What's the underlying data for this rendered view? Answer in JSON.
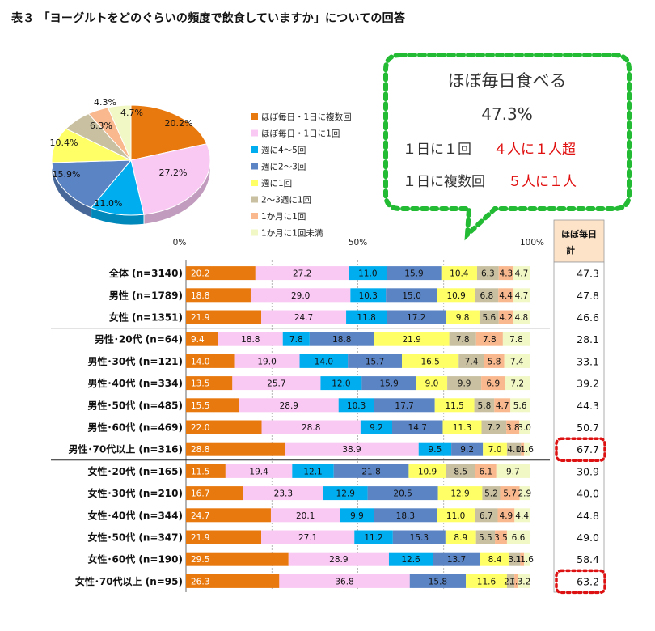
{
  "title": "表３ 「ヨーグルトをどのぐらいの頻度で飲食していますか」についての回答",
  "callout": {
    "heading": "ほぼ毎日食べる",
    "percent": "47.3%",
    "line1_a": "１日に１回",
    "line1_b": "４人に１人超",
    "line2_a": "１日に複数回",
    "line2_b": "５人に１人"
  },
  "colors": [
    "#e8790f",
    "#f9c8f3",
    "#00aeef",
    "#5b84c4",
    "#ffff66",
    "#c8c0a0",
    "#f9b88e",
    "#f2f7c6"
  ],
  "callout_color": "#22bb33",
  "highlight_color": "#dd1111",
  "chart_data": {
    "type": "bar",
    "pie": {
      "type": "pie",
      "labels": [
        "ほぼ毎日・1日に複数回",
        "ほぼ毎日・1日に1回",
        "週に4〜5回",
        "週に2〜3回",
        "週に1回",
        "2〜3週に1回",
        "1か月に1回",
        "1か月に1回未満"
      ],
      "values": [
        20.2,
        27.2,
        11.0,
        15.9,
        10.4,
        6.3,
        4.3,
        4.7
      ],
      "value_labels": [
        "20.2%",
        "27.2%",
        "11.0%",
        "15.9%",
        "10.4%",
        "6.3%",
        "4.3%",
        "4.7%"
      ]
    },
    "stacked_bar": {
      "orientation": "horizontal",
      "stacked": true,
      "axis_ticks": [
        "0%",
        "50%",
        "100%"
      ],
      "xlim": [
        0,
        100
      ],
      "total_header": "ほぼ毎日計",
      "categories": [
        {
          "label": "全体 (n=3140)",
          "values": [
            20.2,
            27.2,
            11.0,
            15.9,
            10.4,
            6.3,
            4.3,
            4.7
          ],
          "texts": [
            "20.2",
            "27.2",
            "11.0",
            "15.9",
            "10.4",
            "6.3",
            "4.3",
            "4.7"
          ],
          "total": "47.3"
        },
        {
          "label": "男性 (n=1789)",
          "values": [
            18.8,
            29.0,
            10.3,
            15.0,
            10.9,
            6.8,
            4.4,
            4.7
          ],
          "texts": [
            "18.8",
            "29.0",
            "10.3",
            "15.0",
            "10.9",
            "6.8",
            "4.4",
            "4.7"
          ],
          "total": "47.8"
        },
        {
          "label": "女性 (n=1351)",
          "values": [
            21.9,
            24.7,
            11.8,
            17.2,
            9.8,
            5.6,
            4.2,
            4.8
          ],
          "texts": [
            "21.9",
            "24.7",
            "11.8",
            "17.2",
            "9.8",
            "5.6",
            "4.2",
            "4.8"
          ],
          "total": "46.6"
        },
        {
          "label": "男性･20代 (n=64)",
          "values": [
            9.4,
            18.8,
            7.8,
            18.8,
            21.9,
            7.8,
            7.8,
            7.8
          ],
          "texts": [
            "9.4",
            "18.8",
            "7.8",
            "18.8",
            "21.9",
            "7.8",
            "7.8",
            "7.8"
          ],
          "total": "28.1"
        },
        {
          "label": "男性･30代 (n=121)",
          "values": [
            14.0,
            19.0,
            14.0,
            15.7,
            16.5,
            7.4,
            5.8,
            7.4
          ],
          "texts": [
            "14.0",
            "19.0",
            "14.0",
            "15.7",
            "16.5",
            "7.4",
            "5.8",
            "7.4"
          ],
          "total": "33.1"
        },
        {
          "label": "男性･40代 (n=334)",
          "values": [
            13.5,
            25.7,
            12.0,
            15.9,
            9.0,
            9.9,
            6.9,
            7.2
          ],
          "texts": [
            "13.5",
            "25.7",
            "12.0",
            "15.9",
            "9.0",
            "9.9",
            "6.9",
            "7.2"
          ],
          "total": "39.2"
        },
        {
          "label": "男性･50代 (n=485)",
          "values": [
            15.5,
            28.9,
            10.3,
            17.7,
            11.5,
            5.8,
            4.7,
            5.6
          ],
          "texts": [
            "15.5",
            "28.9",
            "10.3",
            "17.7",
            "11.5",
            "5.8",
            "4.7",
            "5.6"
          ],
          "total": "44.3"
        },
        {
          "label": "男性･60代 (n=469)",
          "values": [
            22.0,
            28.8,
            9.2,
            14.7,
            11.3,
            7.2,
            3.8,
            3.0
          ],
          "texts": [
            "22.0",
            "28.8",
            "9.2",
            "14.7",
            "11.3",
            "7.2",
            "3.8",
            "3.0"
          ],
          "total": "50.7"
        },
        {
          "label": "男性･70代以上 (n=316)",
          "values": [
            28.8,
            38.9,
            9.5,
            9.2,
            7.0,
            4.1,
            0.9,
            1.6
          ],
          "texts": [
            "28.8",
            "38.9",
            "9.5",
            "9.2",
            "7.0",
            "4.1",
            "0.9",
            "1.6"
          ],
          "total": "67.7",
          "highlight": true
        },
        {
          "label": "女性･20代 (n=165)",
          "values": [
            11.5,
            19.4,
            12.1,
            21.8,
            10.9,
            8.5,
            6.1,
            9.7
          ],
          "texts": [
            "11.5",
            "19.4",
            "12.1",
            "21.8",
            "10.9",
            "8.5",
            "6.1",
            "9.7"
          ],
          "total": "30.9"
        },
        {
          "label": "女性･30代 (n=210)",
          "values": [
            16.7,
            23.3,
            12.9,
            20.5,
            12.9,
            5.2,
            5.7,
            2.9
          ],
          "texts": [
            "16.7",
            "23.3",
            "12.9",
            "20.5",
            "12.9",
            "5.2",
            "5.7",
            "2.9"
          ],
          "total": "40.0"
        },
        {
          "label": "女性･40代 (n=344)",
          "values": [
            24.7,
            20.1,
            9.9,
            18.3,
            11.0,
            6.7,
            4.9,
            4.4
          ],
          "texts": [
            "24.7",
            "20.1",
            "9.9",
            "18.3",
            "11.0",
            "6.7",
            "4.9",
            "4.4"
          ],
          "total": "44.8"
        },
        {
          "label": "女性･50代 (n=347)",
          "values": [
            21.9,
            27.1,
            11.2,
            15.3,
            8.9,
            5.5,
            3.5,
            6.6
          ],
          "texts": [
            "21.9",
            "27.1",
            "11.2",
            "15.3",
            "8.9",
            "5.5",
            "3.5",
            "6.6"
          ],
          "total": "49.0"
        },
        {
          "label": "女性･60代 (n=190)",
          "values": [
            29.5,
            28.9,
            12.6,
            13.7,
            8.4,
            3.1,
            1.1,
            1.6
          ],
          "texts": [
            "29.5",
            "28.9",
            "12.6",
            "13.7",
            "8.4",
            "3.1",
            "1.1",
            "1.6"
          ],
          "total": "58.4"
        },
        {
          "label": "女性･70代以上 (n=95)",
          "values": [
            26.3,
            36.8,
            0,
            15.8,
            11.6,
            2.1,
            1.1,
            3.2
          ],
          "texts": [
            "26.3",
            "36.8",
            "",
            "15.8",
            "11.6",
            "2.1",
            "1.1",
            "3.2"
          ],
          "total": "63.2",
          "highlight": true
        }
      ]
    }
  }
}
